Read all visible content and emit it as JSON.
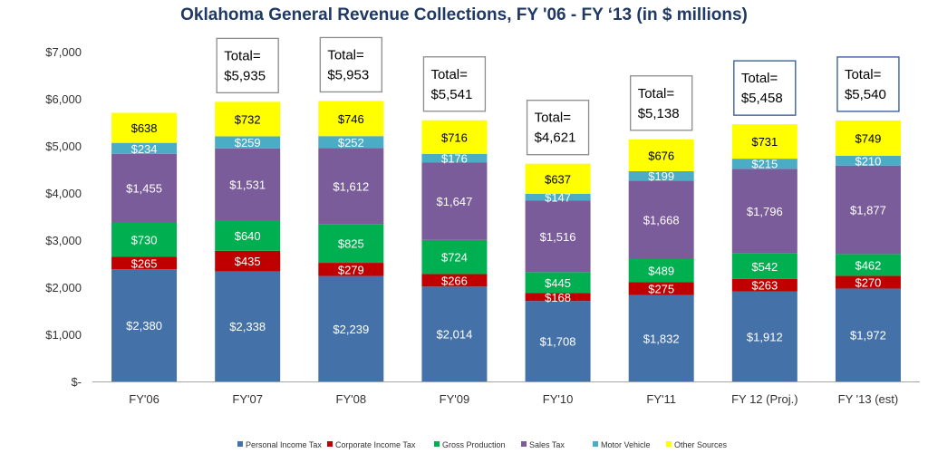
{
  "chart_data": {
    "type": "bar",
    "stacked": true,
    "title": "Oklahoma General Revenue Collections, FY '06 - FY ‘13 (in $ millions)",
    "categories": [
      "FY'06",
      "FY'07",
      "FY'08",
      "FY'09",
      "FY'10",
      "FY'11",
      "FY 12 (Proj.)",
      "FY '13 (est)"
    ],
    "series": [
      {
        "name": "Personal Income Tax",
        "color": "#4472a8",
        "values": [
          2380,
          2338,
          2239,
          2014,
          1708,
          1832,
          1912,
          1972
        ],
        "labels": [
          "$2,380",
          "$2,338",
          "$2,239",
          "$2,014",
          "$1,708",
          "$1,832",
          "$1,912",
          "$1,972"
        ]
      },
      {
        "name": "Corporate Income Tax",
        "color": "#c00000",
        "values": [
          265,
          435,
          279,
          266,
          168,
          275,
          263,
          270
        ],
        "labels": [
          "$265",
          "$435",
          "$279",
          "$266",
          "$168",
          "$275",
          "$263",
          "$270"
        ]
      },
      {
        "name": "Gross Production",
        "color": "#00b050",
        "values": [
          730,
          640,
          825,
          724,
          445,
          489,
          542,
          462
        ],
        "labels": [
          "$730",
          "$640",
          "$825",
          "$724",
          "$445",
          "$489",
          "$542",
          "$462"
        ]
      },
      {
        "name": "Sales Tax",
        "color": "#7a5c9a",
        "values": [
          1455,
          1531,
          1612,
          1647,
          1516,
          1668,
          1796,
          1877
        ],
        "labels": [
          "$1,455",
          "$1,531",
          "$1,612",
          "$1,647",
          "$1,516",
          "$1,668",
          "$1,796",
          "$1,877"
        ]
      },
      {
        "name": "Motor Vehicle",
        "color": "#4bacc6",
        "values": [
          234,
          259,
          252,
          176,
          147,
          199,
          215,
          210
        ],
        "labels": [
          "$234",
          "$259",
          "$252",
          "$176",
          "$147",
          "$199",
          "$215",
          "$210"
        ]
      },
      {
        "name": "Other Sources",
        "color": "#ffff00",
        "values": [
          638,
          732,
          746,
          716,
          637,
          676,
          731,
          749
        ],
        "labels": [
          "$638",
          "$732",
          "$746",
          "$716",
          "$637",
          "$676",
          "$731",
          "$749"
        ]
      }
    ],
    "totals": [
      null,
      {
        "line1": "Total=",
        "line2": "$5,935",
        "border": "#8c8c8c"
      },
      {
        "line1": "Total=",
        "line2": "$5,953",
        "border": "#8c8c8c"
      },
      {
        "line1": "Total=",
        "line2": "$5,541",
        "border": "#8c8c8c"
      },
      {
        "line1": "Total=",
        "line2": "$4,621",
        "border": "#8c8c8c"
      },
      {
        "line1": "Total=",
        "line2": "$5,138",
        "border": "#8c8c8c"
      },
      {
        "line1": "Total=",
        "line2": "$5,458",
        "border": "#2e5597"
      },
      {
        "line1": "Total=",
        "line2": "$5,540",
        "border": "#2e5597"
      }
    ],
    "y_ticks": [
      0,
      1000,
      2000,
      3000,
      4000,
      5000,
      6000,
      7000
    ],
    "y_tick_labels": [
      "$-",
      "$1,000",
      "$2,000",
      "$3,000",
      "$4,000",
      "$5,000",
      "$6,000",
      "$7,000"
    ],
    "ylim": [
      0,
      7000
    ],
    "xlabel": "",
    "ylabel": "",
    "grid": false,
    "legend_position": "bottom"
  }
}
